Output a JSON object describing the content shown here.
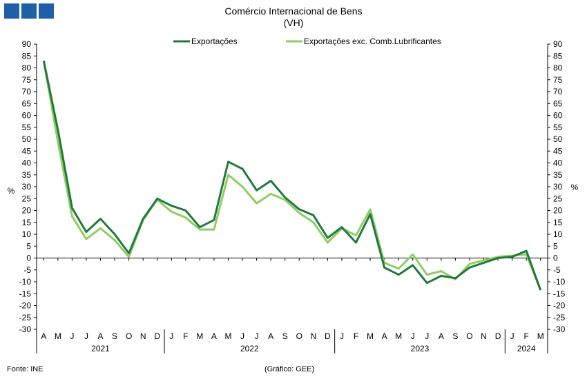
{
  "chart_data": {
    "type": "line",
    "title": "Comércio Internacional de Bens",
    "subtitle": "(VH)",
    "ylabel_left": "%",
    "ylabel_right": "%",
    "ylim": [
      -30,
      90
    ],
    "yticks": [
      90,
      85,
      80,
      75,
      70,
      65,
      60,
      55,
      50,
      45,
      40,
      35,
      30,
      25,
      20,
      15,
      10,
      5,
      0,
      -5,
      -10,
      -15,
      -20,
      -25,
      -30
    ],
    "categories": [
      "A",
      "M",
      "J",
      "J",
      "A",
      "S",
      "O",
      "N",
      "D",
      "J",
      "F",
      "M",
      "A",
      "M",
      "J",
      "J",
      "A",
      "S",
      "O",
      "N",
      "D",
      "J",
      "F",
      "M",
      "A",
      "M",
      "J",
      "J",
      "A",
      "S",
      "O",
      "N",
      "D",
      "J",
      "F",
      "M"
    ],
    "years": [
      {
        "label": "2021",
        "start": 0,
        "end": 9
      },
      {
        "label": "2022",
        "start": 9,
        "end": 21
      },
      {
        "label": "2023",
        "start": 21,
        "end": 33
      },
      {
        "label": "2024",
        "start": 33,
        "end": 36
      }
    ],
    "legend_position": "top-center",
    "grid": false,
    "series": [
      {
        "name": "Exportações",
        "color": "#1e7a3c",
        "values": [
          83,
          54,
          21,
          11,
          16.5,
          10,
          2,
          16.5,
          25,
          22,
          20,
          13,
          16,
          40.5,
          37.5,
          28.5,
          32.5,
          25.5,
          20.5,
          18,
          8.5,
          13,
          6.5,
          18.5,
          -4,
          -7,
          -3,
          -10.5,
          -7.5,
          -8.5,
          -4,
          -2,
          0,
          0.5,
          3,
          -13.5
        ]
      },
      {
        "name": "Exportações exc. Comb.Lubrificantes",
        "color": "#8fcd62",
        "values": [
          83,
          49,
          17.5,
          8,
          12.5,
          7.5,
          0.5,
          16,
          24.5,
          19.5,
          17,
          12,
          12,
          35,
          30,
          23,
          27,
          24.5,
          19,
          15,
          6.5,
          12.5,
          9.5,
          20.5,
          -2,
          -4.5,
          1.5,
          -7,
          -5.5,
          -9,
          -2.5,
          -1,
          0.5,
          1,
          1.5,
          -13.5
        ]
      }
    ]
  },
  "footer": {
    "source": "Fonte: INE",
    "credit": "(Gráfico: GEE)"
  }
}
